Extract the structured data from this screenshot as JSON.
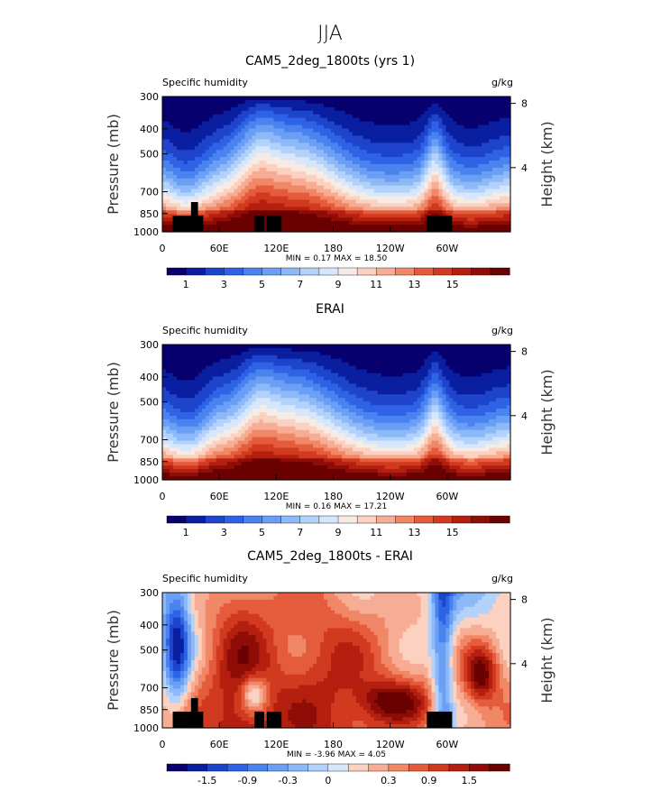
{
  "figure_title": "JJA",
  "palettes": {
    "absolute": [
      "#07006e",
      "#0a1ea0",
      "#1f44cc",
      "#2e63e6",
      "#4a83f0",
      "#6a9ff5",
      "#8db9f8",
      "#b3d2fb",
      "#d6e7fc",
      "#f6ece5",
      "#fbd1c0",
      "#f7ad95",
      "#f08868",
      "#e55c3c",
      "#d13a1f",
      "#b41f10",
      "#8e0d07",
      "#6a0000"
    ],
    "difference": [
      "#07006e",
      "#0a1ea0",
      "#1f44cc",
      "#2e63e6",
      "#4a83f0",
      "#6a9ff5",
      "#8db9f8",
      "#b3d2fb",
      "#d6e7fc",
      "#fbd1c0",
      "#f7ad95",
      "#f08868",
      "#e55c3c",
      "#d13a1f",
      "#b41f10",
      "#8e0d07",
      "#6a0000"
    ]
  },
  "chart_data": [
    {
      "type": "heatmap",
      "title": "CAM5_2deg_1800ts (yrs 1)",
      "left_label": "Specific humidity",
      "right_label": "g/kg",
      "ylabel": "Pressure (mb)",
      "ylabel_right": "Height (km)",
      "y_ticks": [
        "300",
        "400",
        "500",
        "700",
        "850",
        "1000"
      ],
      "y_ticks_right": [
        "8",
        "4"
      ],
      "x_ticks": [
        "0",
        "60E",
        "120E",
        "180",
        "120W",
        "60W"
      ],
      "stats": {
        "min_label": "MIN =",
        "min": "0.17",
        "max_label": "MAX =",
        "max": "18.50"
      },
      "colorbar_labels": [
        "1",
        "3",
        "5",
        "7",
        "9",
        "11",
        "13",
        "15"
      ],
      "palette": "absolute",
      "field": "moisture",
      "topography": true
    },
    {
      "type": "heatmap",
      "title": "ERAI",
      "left_label": "Specific humidity",
      "right_label": "g/kg",
      "ylabel": "Pressure (mb)",
      "ylabel_right": "Height (km)",
      "y_ticks": [
        "300",
        "400",
        "500",
        "700",
        "850",
        "1000"
      ],
      "y_ticks_right": [
        "8",
        "4"
      ],
      "x_ticks": [
        "0",
        "60E",
        "120E",
        "180",
        "120W",
        "60W"
      ],
      "stats": {
        "min_label": "MIN =",
        "min": "0.16",
        "max_label": "MAX =",
        "max": "17.21"
      },
      "colorbar_labels": [
        "1",
        "3",
        "5",
        "7",
        "9",
        "11",
        "13",
        "15"
      ],
      "palette": "absolute",
      "field": "moisture",
      "topography": false
    },
    {
      "type": "heatmap",
      "title": "CAM5_2deg_1800ts - ERAI",
      "left_label": "Specific humidity",
      "right_label": "g/kg",
      "ylabel": "Pressure (mb)",
      "ylabel_right": "Height (km)",
      "y_ticks": [
        "300",
        "400",
        "500",
        "700",
        "850",
        "1000"
      ],
      "y_ticks_right": [
        "8",
        "4"
      ],
      "x_ticks": [
        "0",
        "60E",
        "120E",
        "180",
        "120W",
        "60W"
      ],
      "stats": {
        "min_label": "MIN =",
        "min": "-3.96",
        "max_label": "MAX =",
        "max": "4.05"
      },
      "colorbar_labels": [
        "-1.5",
        "-0.9",
        "-0.3",
        "0",
        "0.3",
        "0.9",
        "1.5"
      ],
      "palette": "difference",
      "field": "difference",
      "topography": true
    }
  ]
}
